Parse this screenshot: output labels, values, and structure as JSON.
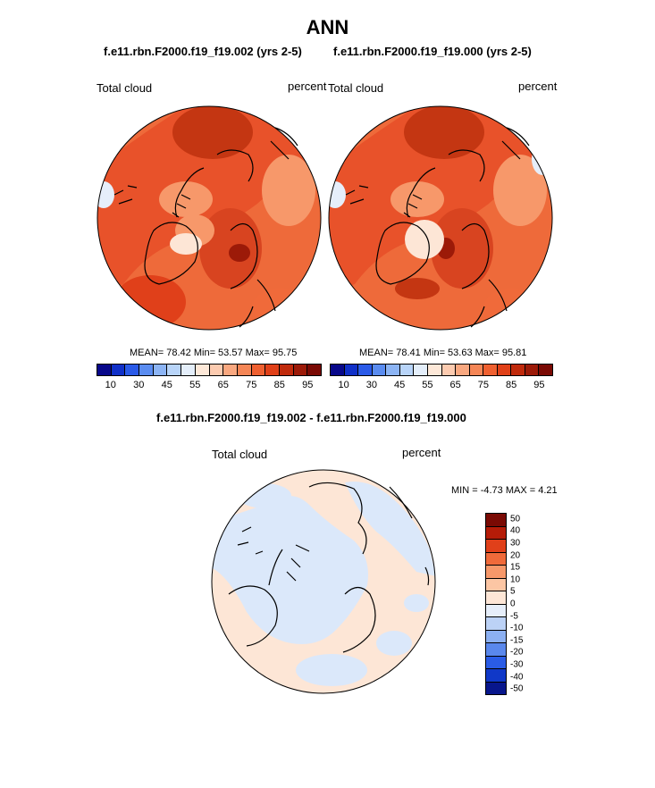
{
  "title": "ANN",
  "panels": [
    {
      "case": "f.e11.rbn.F2000.f19_f19.002 (yrs 2-5)",
      "variable": "Total cloud",
      "units": "percent",
      "stats": "MEAN=  78.42  Min=  53.57  Max=  95.75"
    },
    {
      "case": "f.e11.rbn.F2000.f19_f19.000 (yrs 2-5)",
      "variable": "Total cloud",
      "units": "percent",
      "stats": "MEAN=  78.41  Min=  53.63  Max=  95.81"
    }
  ],
  "diff": {
    "title": "f.e11.rbn.F2000.f19_f19.002 - f.e11.rbn.F2000.f19_f19.000",
    "variable": "Total cloud",
    "units": "percent",
    "stats": "MIN =  -4.73 MAX =   4.21"
  },
  "colorbar_main": {
    "colors": [
      "#08088a",
      "#1030c8",
      "#2a5ae8",
      "#5a8cf0",
      "#8cb4f4",
      "#b8d4f8",
      "#e4eefa",
      "#fde8d8",
      "#fccbb0",
      "#f9a880",
      "#f58656",
      "#ef6030",
      "#e04018",
      "#c02a0c",
      "#9c1a08",
      "#7a0a04"
    ],
    "tick_labels": [
      "10",
      "30",
      "45",
      "55",
      "65",
      "75",
      "85",
      "95"
    ]
  },
  "colorbar_diff": {
    "colors": [
      "#7a0a04",
      "#b51c08",
      "#e0401a",
      "#f06a3a",
      "#f7986a",
      "#fcc6a4",
      "#fde6d6",
      "#e6eefa",
      "#bcd2f6",
      "#8cb0f2",
      "#5a88ec",
      "#2a5ce6",
      "#1038c8",
      "#08168c"
    ],
    "tick_labels": [
      "50",
      "40",
      "30",
      "20",
      "15",
      "10",
      "5",
      "0",
      "-5",
      "-10",
      "-15",
      "-20",
      "-30",
      "-40",
      "-50"
    ]
  }
}
